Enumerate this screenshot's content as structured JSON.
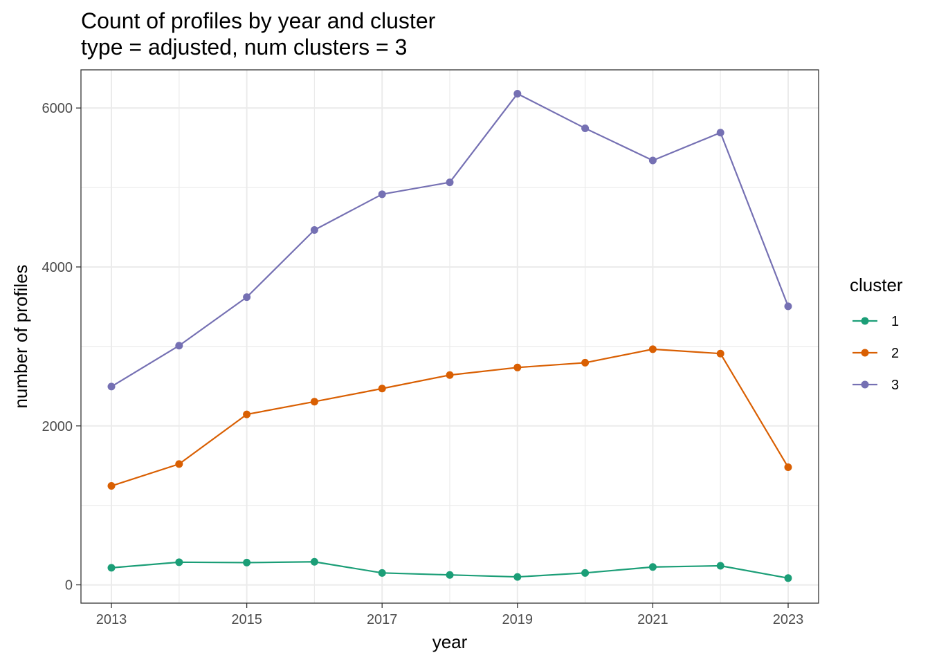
{
  "chart_data": {
    "type": "line",
    "title": "Count of profiles by year and cluster",
    "subtitle": "type = adjusted, num clusters = 3",
    "xlabel": "year",
    "ylabel": "number of profiles",
    "x": [
      2013,
      2014,
      2015,
      2016,
      2017,
      2018,
      2019,
      2020,
      2021,
      2022,
      2023
    ],
    "x_ticks": [
      "2013",
      "2015",
      "2017",
      "2019",
      "2021",
      "2023"
    ],
    "y_ticks": [
      "0",
      "2000",
      "4000",
      "6000"
    ],
    "xlim": [
      2012.55,
      2023.45
    ],
    "ylim": [
      -230,
      6480
    ],
    "grid": true,
    "legend": {
      "title": "cluster",
      "position": "right"
    },
    "series": [
      {
        "name": "1",
        "color": "#1b9e77",
        "values": [
          215,
          285,
          280,
          290,
          150,
          125,
          100,
          150,
          225,
          240,
          85
        ]
      },
      {
        "name": "2",
        "color": "#d95f02",
        "values": [
          1245,
          1520,
          2145,
          2305,
          2470,
          2640,
          2735,
          2795,
          2965,
          2910,
          1480
        ]
      },
      {
        "name": "3",
        "color": "#7570b3",
        "values": [
          2495,
          3010,
          3620,
          4465,
          4915,
          5065,
          6180,
          5745,
          5340,
          5690,
          3505
        ]
      }
    ]
  }
}
